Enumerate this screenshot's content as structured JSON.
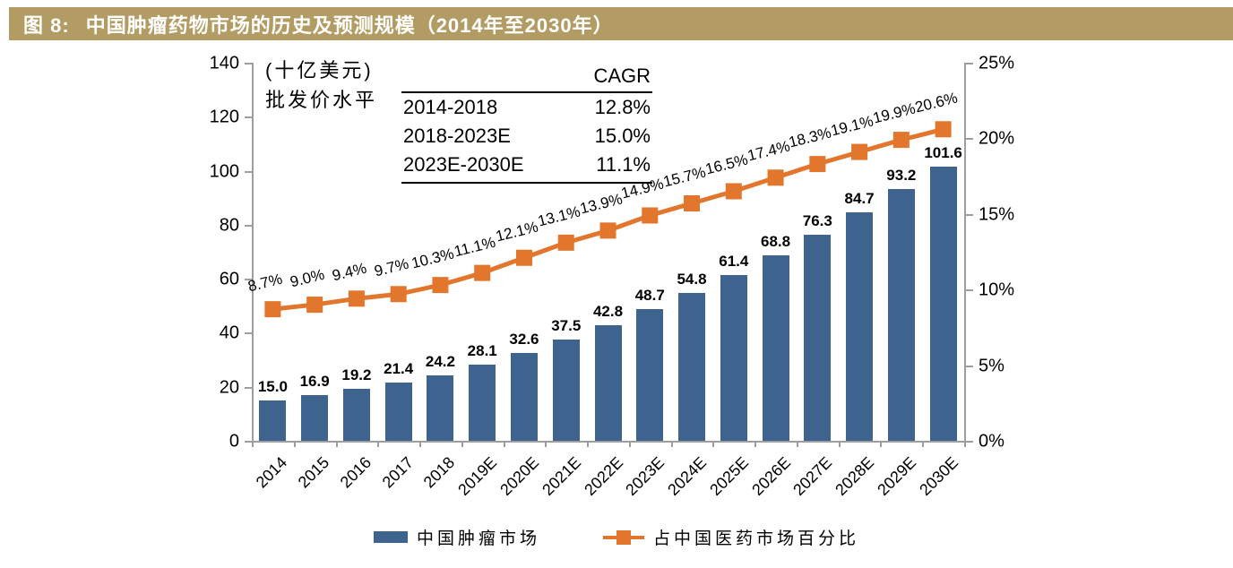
{
  "title": {
    "prefix": "图  8:",
    "text": "中国肿瘤药物市场的历史及预测规模（2014年至2030年）"
  },
  "unit_label": {
    "line1": "(十亿美元)",
    "line2": "批发价水平"
  },
  "cagr_table": {
    "header": "CAGR",
    "rows": [
      {
        "period": "2014-2018",
        "value": "12.8%"
      },
      {
        "period": "2018-2023E",
        "value": "15.0%"
      },
      {
        "period": "2023E-2030E",
        "value": "11.1%"
      }
    ]
  },
  "chart_data": {
    "type": "bar",
    "title": "中国肿瘤药物市场的历史及预测规模（2014年至2030年）",
    "categories": [
      "2014",
      "2015",
      "2016",
      "2017",
      "2018",
      "2019E",
      "2020E",
      "2021E",
      "2022E",
      "2023E",
      "2024E",
      "2025E",
      "2026E",
      "2027E",
      "2028E",
      "2029E",
      "2030E"
    ],
    "series": [
      {
        "name": "中国肿瘤市场",
        "type": "bar",
        "axis": "left",
        "color": "#3f638f",
        "values": [
          15.0,
          16.9,
          19.2,
          21.4,
          24.2,
          28.1,
          32.6,
          37.5,
          42.8,
          48.7,
          54.8,
          61.4,
          68.8,
          76.3,
          84.7,
          93.2,
          101.6
        ],
        "labels": [
          "15.0",
          "16.9",
          "19.2",
          "21.4",
          "24.2",
          "28.1",
          "32.6",
          "37.5",
          "42.8",
          "48.7",
          "54.8",
          "61.4",
          "68.8",
          "76.3",
          "84.7",
          "93.2",
          "101.6"
        ]
      },
      {
        "name": "占中国医药市场百分比",
        "type": "line",
        "axis": "right",
        "color": "#e2762c",
        "values": [
          8.7,
          9.0,
          9.4,
          9.7,
          10.3,
          11.1,
          12.1,
          13.1,
          13.9,
          14.9,
          15.7,
          16.5,
          17.4,
          18.3,
          19.1,
          19.9,
          20.6
        ],
        "labels": [
          "8.7%",
          "9.0%",
          "9.4%",
          "9.7%",
          "10.3%",
          "11.1%",
          "12.1%",
          "13.1%",
          "13.9%",
          "14.9%",
          "15.7%",
          "16.5%",
          "17.4%",
          "18.3%",
          "19.1%",
          "19.9%",
          "20.6%"
        ]
      }
    ],
    "left_axis": {
      "min": 0,
      "max": 140,
      "step": 20,
      "tick_labels": [
        "0",
        "20",
        "40",
        "60",
        "80",
        "100",
        "120",
        "140"
      ]
    },
    "right_axis": {
      "min": 0,
      "max": 25,
      "step": 5,
      "tick_labels": [
        "0%",
        "5%",
        "10%",
        "15%",
        "20%",
        "25%"
      ]
    },
    "grid": false,
    "legend_position": "bottom"
  },
  "legend": {
    "items": [
      {
        "label": "中国肿瘤市场",
        "color": "#3f638f",
        "marker": "bar"
      },
      {
        "label": "占中国医药市场百分比",
        "color": "#e2762c",
        "marker": "line-square"
      }
    ]
  },
  "colors": {
    "title_bar_bg": "#b39c63",
    "title_bar_text": "#ffffff",
    "bar": "#3f638f",
    "line": "#e2762c",
    "axis": "#9e9e9e",
    "text": "#000000"
  }
}
